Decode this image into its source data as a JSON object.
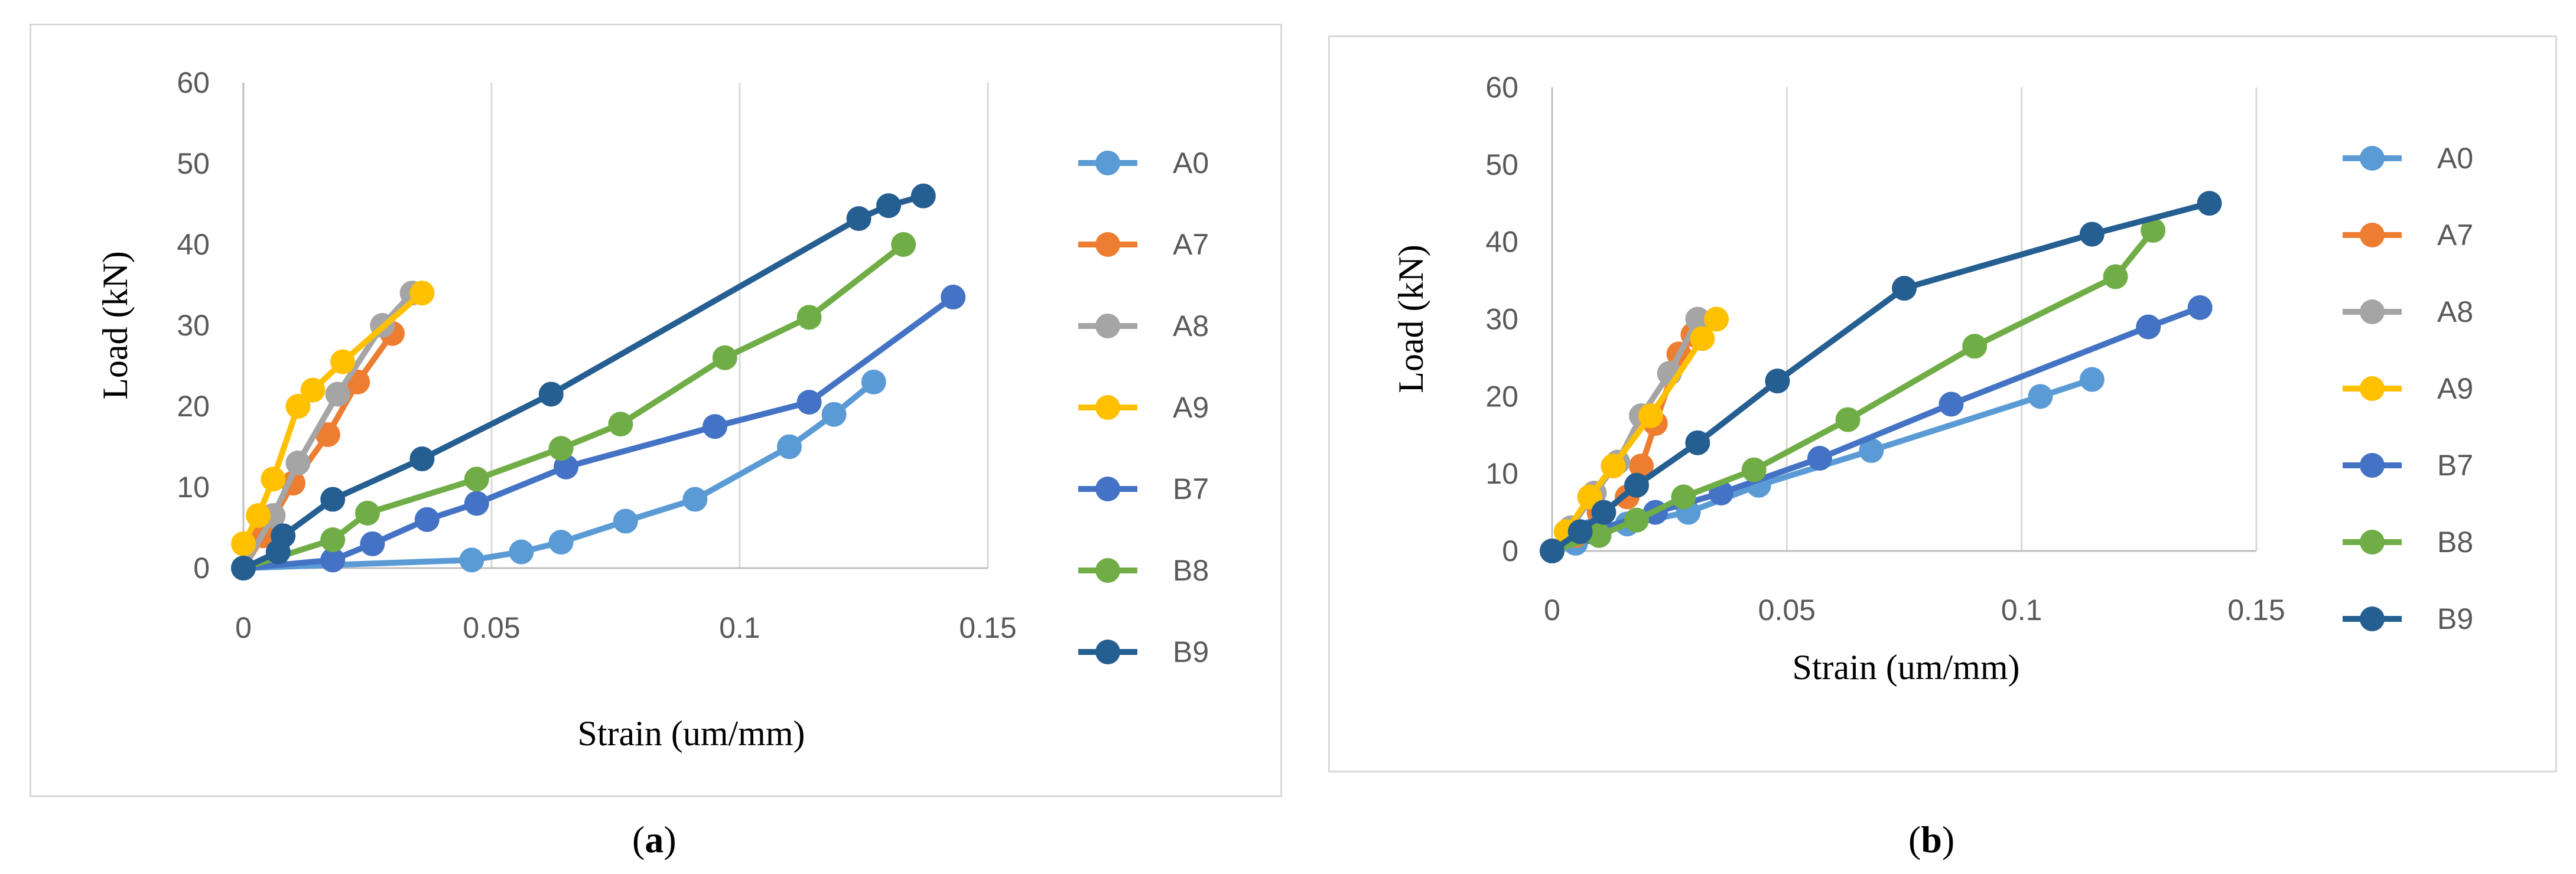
{
  "colors": {
    "A0": "#5b9bd5",
    "A7": "#ed7d31",
    "A8": "#a5a5a5",
    "A9": "#ffc000",
    "B7": "#4472c4",
    "B8": "#70ad47",
    "B9": "#255e91",
    "grid": "#d9d9d9",
    "axis": "#bfbfbf",
    "tick_text": "#595959"
  },
  "chart_data": [
    {
      "type": "line",
      "panel": "a",
      "caption_open": "(",
      "caption_letter": "a",
      "caption_close": ")",
      "xlabel": "Strain (um/mm)",
      "ylabel": "Load (kN)",
      "xlim": [
        0,
        0.15
      ],
      "ylim": [
        0,
        60
      ],
      "xticks": [
        0,
        0.05,
        0.1,
        0.15
      ],
      "xtick_labels": [
        "0",
        "0.05",
        "0.1",
        "0.15"
      ],
      "yticks": [
        0,
        10,
        20,
        30,
        40,
        50,
        60
      ],
      "ytick_labels": [
        "0",
        "10",
        "20",
        "30",
        "40",
        "50",
        "60"
      ],
      "series": [
        {
          "name": "A0",
          "x": [
            0,
            0.046,
            0.056,
            0.064,
            0.077,
            0.091,
            0.11,
            0.119,
            0.127
          ],
          "y": [
            0,
            1,
            2,
            3.2,
            5.8,
            8.5,
            15,
            19,
            23
          ]
        },
        {
          "name": "A7",
          "x": [
            0,
            0.004,
            0.01,
            0.017,
            0.023,
            0.03
          ],
          "y": [
            0,
            4,
            10.5,
            16.5,
            23,
            29
          ]
        },
        {
          "name": "A8",
          "x": [
            0,
            0.006,
            0.011,
            0.019,
            0.028,
            0.034
          ],
          "y": [
            0,
            6.5,
            13,
            21.5,
            30,
            34
          ]
        },
        {
          "name": "A9",
          "x": [
            0,
            0.003,
            0.006,
            0.011,
            0.014,
            0.02,
            0.036
          ],
          "y": [
            3,
            6.5,
            11,
            20,
            22,
            25.5,
            34
          ]
        },
        {
          "name": "B7",
          "x": [
            0,
            0.018,
            0.026,
            0.037,
            0.047,
            0.065,
            0.095,
            0.114,
            0.143
          ],
          "y": [
            0,
            1,
            3,
            6,
            8,
            12.5,
            17.5,
            20.5,
            33.5
          ]
        },
        {
          "name": "B8",
          "x": [
            0,
            0.018,
            0.025,
            0.047,
            0.064,
            0.076,
            0.097,
            0.114,
            0.133
          ],
          "y": [
            0,
            3.5,
            6.8,
            11,
            14.8,
            17.8,
            26,
            31,
            40
          ]
        },
        {
          "name": "B9",
          "x": [
            0,
            0.007,
            0.008,
            0.018,
            0.036,
            0.062,
            0.124,
            0.13,
            0.137
          ],
          "y": [
            0,
            2,
            4,
            8.5,
            13.5,
            21.5,
            43.2,
            44.8,
            46
          ]
        }
      ]
    },
    {
      "type": "line",
      "panel": "b",
      "caption_open": "(",
      "caption_letter": "b",
      "caption_close": ")",
      "xlabel": "Strain (um/mm)",
      "ylabel": "Load (kN)",
      "xlim": [
        0,
        0.15
      ],
      "ylim": [
        0,
        60
      ],
      "xticks": [
        0,
        0.05,
        0.1,
        0.15
      ],
      "xtick_labels": [
        "0",
        "0.05",
        "0.1",
        "0.15"
      ],
      "yticks": [
        0,
        10,
        20,
        30,
        40,
        50,
        60
      ],
      "ytick_labels": [
        "0",
        "10",
        "20",
        "30",
        "40",
        "50",
        "60"
      ],
      "series": [
        {
          "name": "A0",
          "x": [
            0,
            0.005,
            0.016,
            0.029,
            0.044,
            0.068,
            0.104,
            0.115
          ],
          "y": [
            0,
            1,
            3.5,
            5,
            8.5,
            13,
            20,
            22.2
          ]
        },
        {
          "name": "A7",
          "x": [
            0,
            0.005,
            0.01,
            0.016,
            0.019,
            0.022,
            0.027,
            0.03
          ],
          "y": [
            0,
            2,
            5,
            7,
            11,
            16.5,
            25.5,
            28
          ]
        },
        {
          "name": "A8",
          "x": [
            0,
            0.004,
            0.009,
            0.014,
            0.019,
            0.025,
            0.031
          ],
          "y": [
            0,
            3,
            7.5,
            11.5,
            17.5,
            23,
            30
          ]
        },
        {
          "name": "A9",
          "x": [
            0,
            0.003,
            0.008,
            0.013,
            0.021,
            0.032,
            0.035
          ],
          "y": [
            0,
            2.5,
            7,
            11,
            17.5,
            27.5,
            30
          ]
        },
        {
          "name": "B7",
          "x": [
            0,
            0.008,
            0.022,
            0.036,
            0.057,
            0.085,
            0.127,
            0.138
          ],
          "y": [
            0,
            2.5,
            5,
            7.5,
            12,
            19,
            29,
            31.5
          ]
        },
        {
          "name": "B8",
          "x": [
            0,
            0.01,
            0.018,
            0.028,
            0.043,
            0.063,
            0.09,
            0.12,
            0.128
          ],
          "y": [
            0,
            2,
            4,
            7,
            10.5,
            17,
            26.5,
            35.5,
            41.5
          ]
        },
        {
          "name": "B9",
          "x": [
            0,
            0.006,
            0.011,
            0.018,
            0.031,
            0.048,
            0.075,
            0.115,
            0.14
          ],
          "y": [
            0,
            2.5,
            5,
            8.5,
            14,
            22,
            34,
            41,
            45
          ]
        }
      ]
    }
  ]
}
